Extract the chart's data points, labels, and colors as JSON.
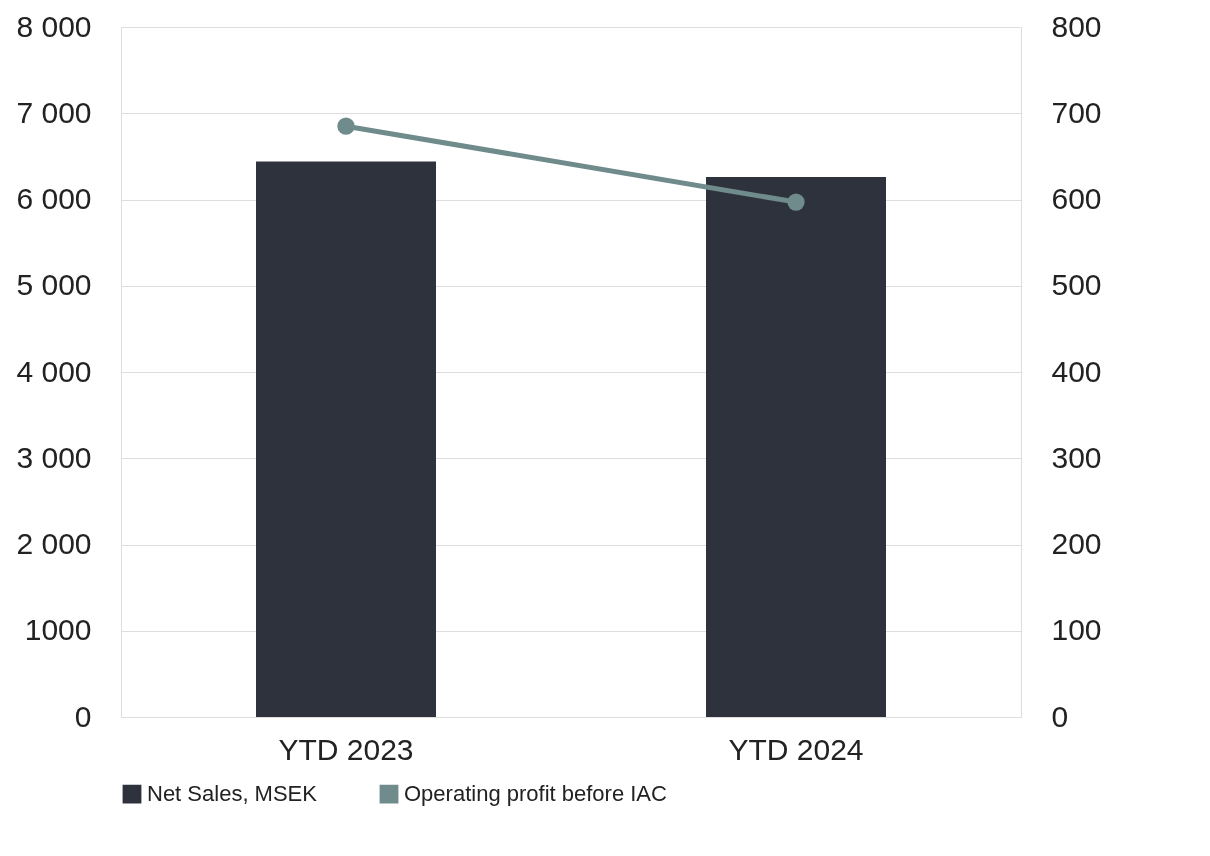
{
  "chart_data": {
    "type": "bar",
    "categories": [
      "YTD 2023",
      "YTD 2024"
    ],
    "series": [
      {
        "name": "Net Sales, MSEK",
        "color": "#2e323c",
        "values": [
          6440,
          6260
        ]
      },
      {
        "name": "Operating profit before IAC",
        "color": "#6f8b8b",
        "values": [
          685,
          597
        ],
        "type": "line",
        "axis": "y2",
        "marker": "circle"
      }
    ],
    "ylim": [
      0,
      8000
    ],
    "yticks": [
      0,
      {
        "value": 1000,
        "label": "1000"
      },
      {
        "value": 2000,
        "label": "2 000"
      },
      {
        "value": 3000,
        "label": "3 000"
      },
      {
        "value": 4000,
        "label": "4 000"
      },
      {
        "value": 5000,
        "label": "5 000"
      },
      {
        "value": 6000,
        "label": "6 000"
      },
      {
        "value": 7000,
        "label": "7 000"
      },
      {
        "value": 8000,
        "label": "8 000"
      }
    ],
    "y2lim": [
      0,
      800
    ],
    "y2ticks": [
      0,
      100,
      200,
      300,
      400,
      500,
      600,
      700,
      800
    ],
    "grid": "y",
    "legend": "bottom"
  }
}
